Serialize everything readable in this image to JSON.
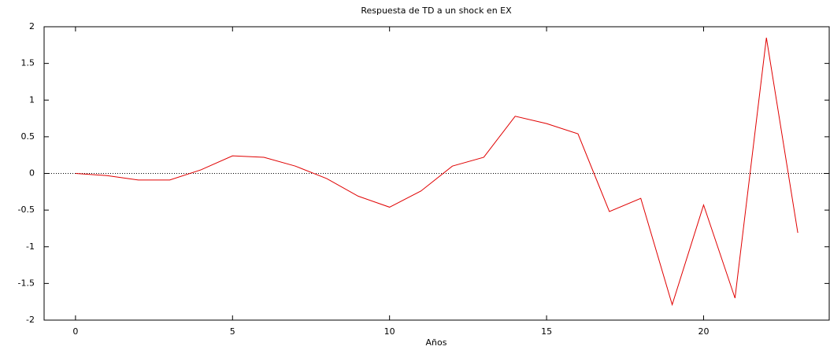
{
  "chart_data": {
    "type": "line",
    "title": "Respuesta de TD a un shock en EX",
    "x_label": "Años",
    "x": [
      0,
      1,
      2,
      3,
      4,
      5,
      6,
      7,
      8,
      9,
      10,
      11,
      12,
      13,
      14,
      15,
      16,
      17,
      18,
      19,
      20,
      21,
      22,
      23
    ],
    "series": [
      {
        "name": "TD",
        "color": "#e00000",
        "values": [
          0,
          -0.03,
          -0.09,
          -0.09,
          0.05,
          0.24,
          0.22,
          0.1,
          -0.07,
          -0.31,
          -0.46,
          -0.24,
          0.1,
          0.22,
          0.78,
          0.68,
          0.54,
          -0.52,
          -0.34,
          -1.79,
          -0.43,
          -1.7,
          1.85,
          -0.81
        ]
      }
    ],
    "xlim": [
      -1,
      24
    ],
    "xticks": [
      0,
      5,
      10,
      15,
      20
    ],
    "ylim": [
      -2,
      2
    ],
    "yticks": [
      -2,
      -1.5,
      -1,
      -0.5,
      0,
      0.5,
      1,
      1.5,
      2
    ],
    "zero_line": true
  }
}
